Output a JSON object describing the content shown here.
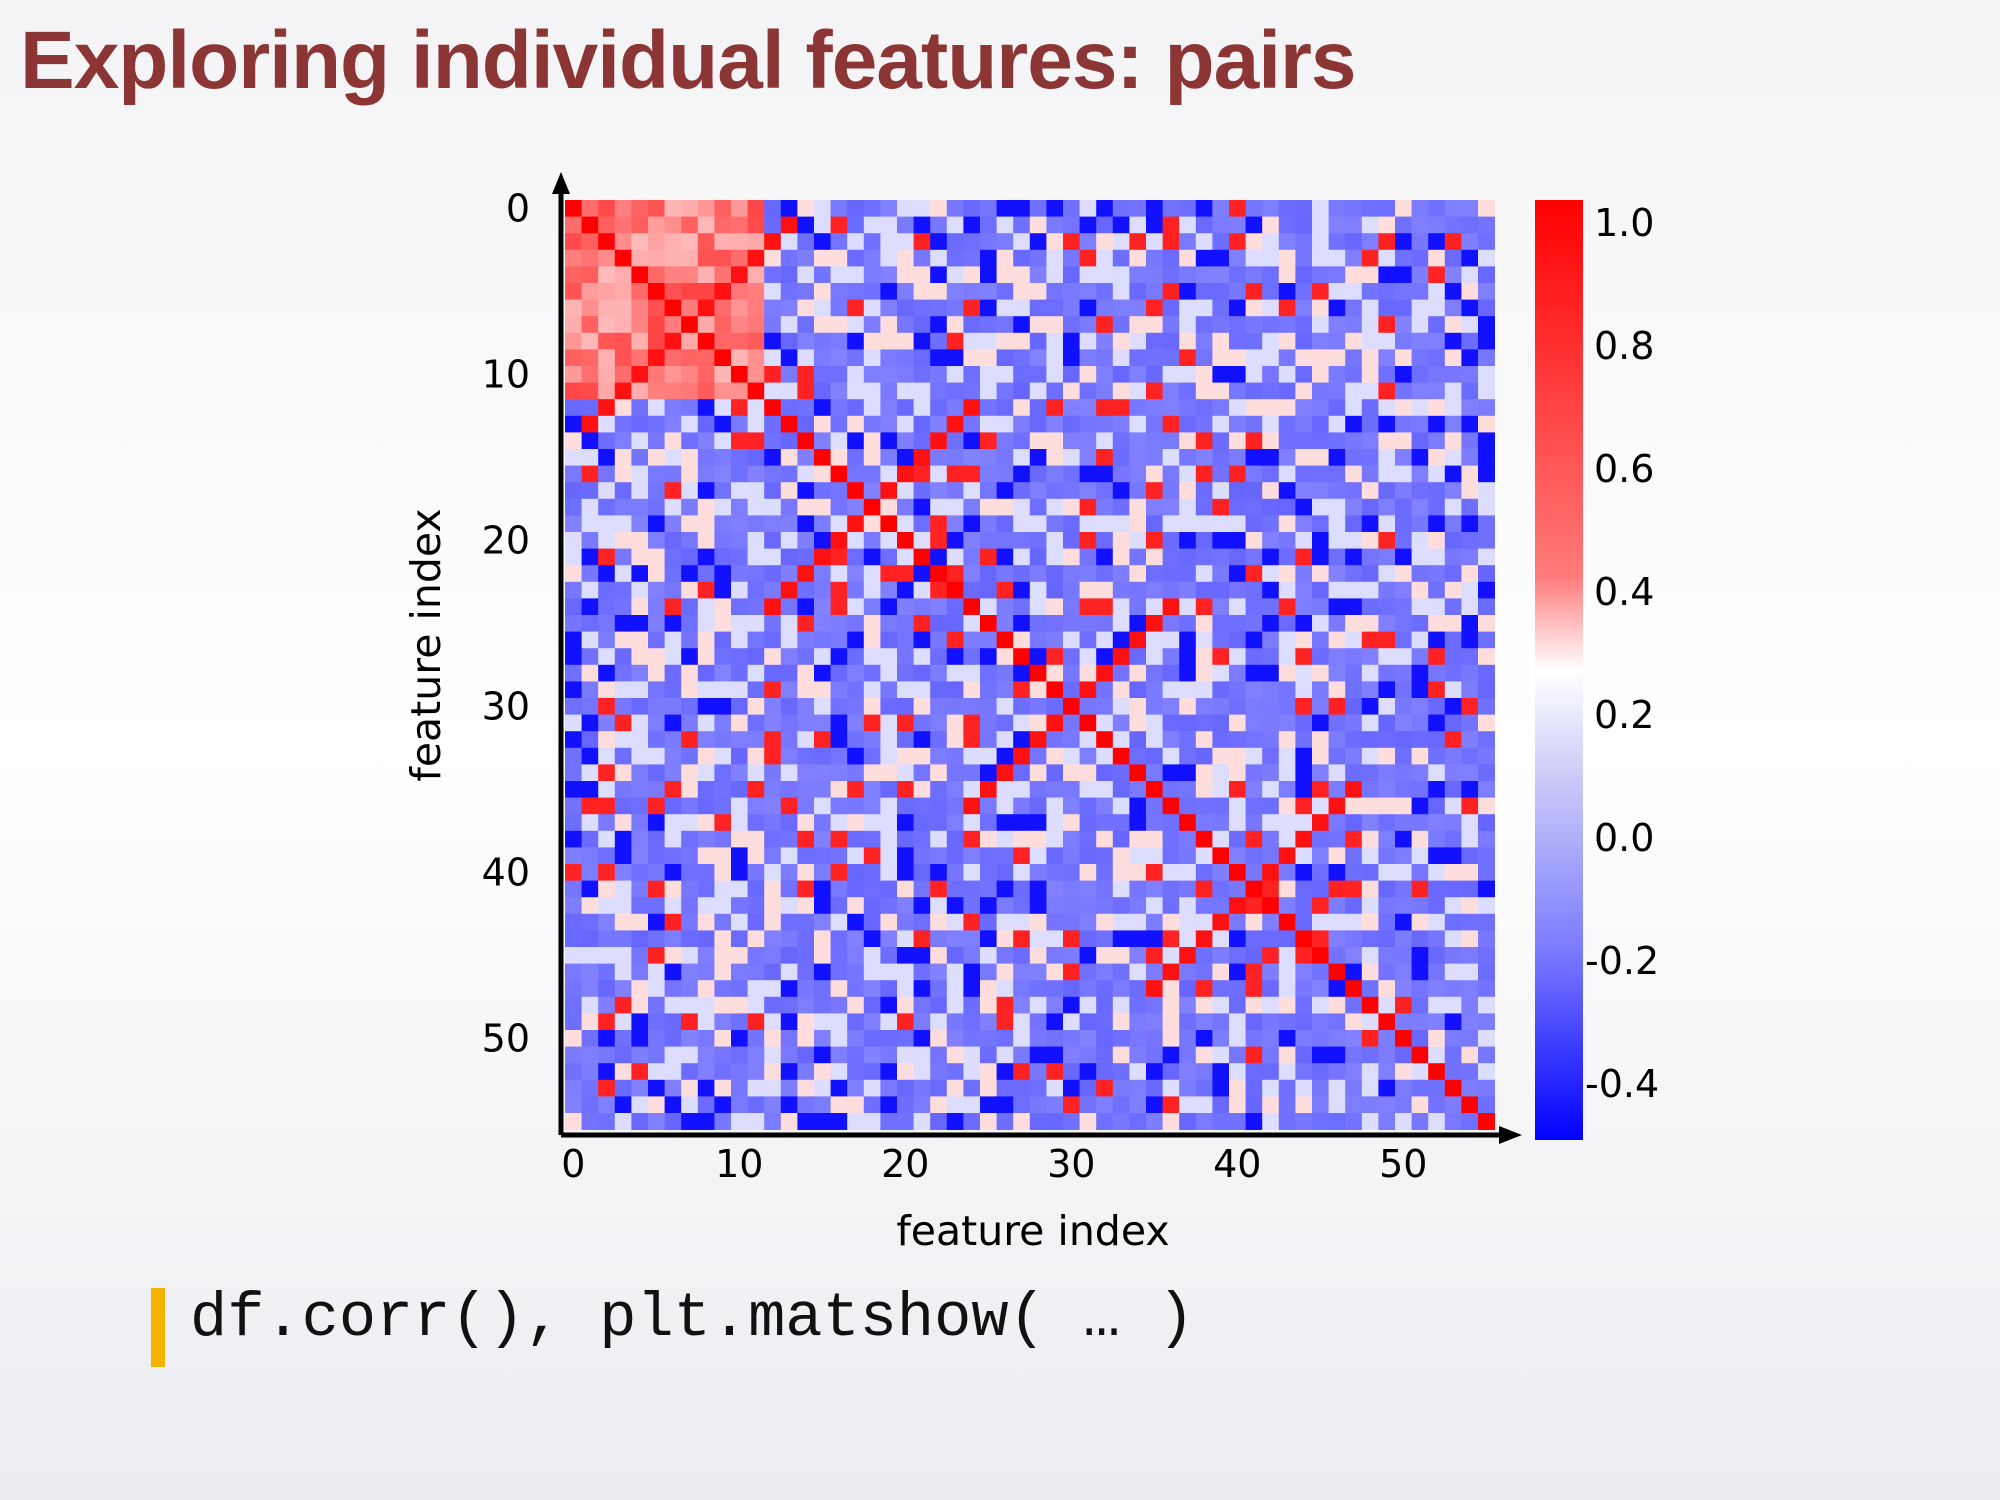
{
  "slide": {
    "title": "Exploring individual features: pairs",
    "code": "df.corr(), plt.matshow( … )"
  },
  "chart_data": {
    "type": "heatmap",
    "title": "",
    "xlabel": "feature index",
    "ylabel": "feature index",
    "n_features": 56,
    "x_ticks": [
      0,
      10,
      20,
      30,
      40,
      50
    ],
    "y_ticks": [
      0,
      10,
      20,
      30,
      40,
      50
    ],
    "colorbar": {
      "ticks": [
        "1.0",
        "0.8",
        "0.6",
        "0.4",
        "0.2",
        "0.0",
        "-0.2",
        "-0.4"
      ],
      "min": -0.5,
      "max": 1.0,
      "colormap": "bwr"
    },
    "colors": {
      "low": "#0000ff",
      "mid": "#ffffff",
      "high": "#ff0000",
      "title": "#8b3634",
      "code_bar": "#f4b400"
    }
  }
}
